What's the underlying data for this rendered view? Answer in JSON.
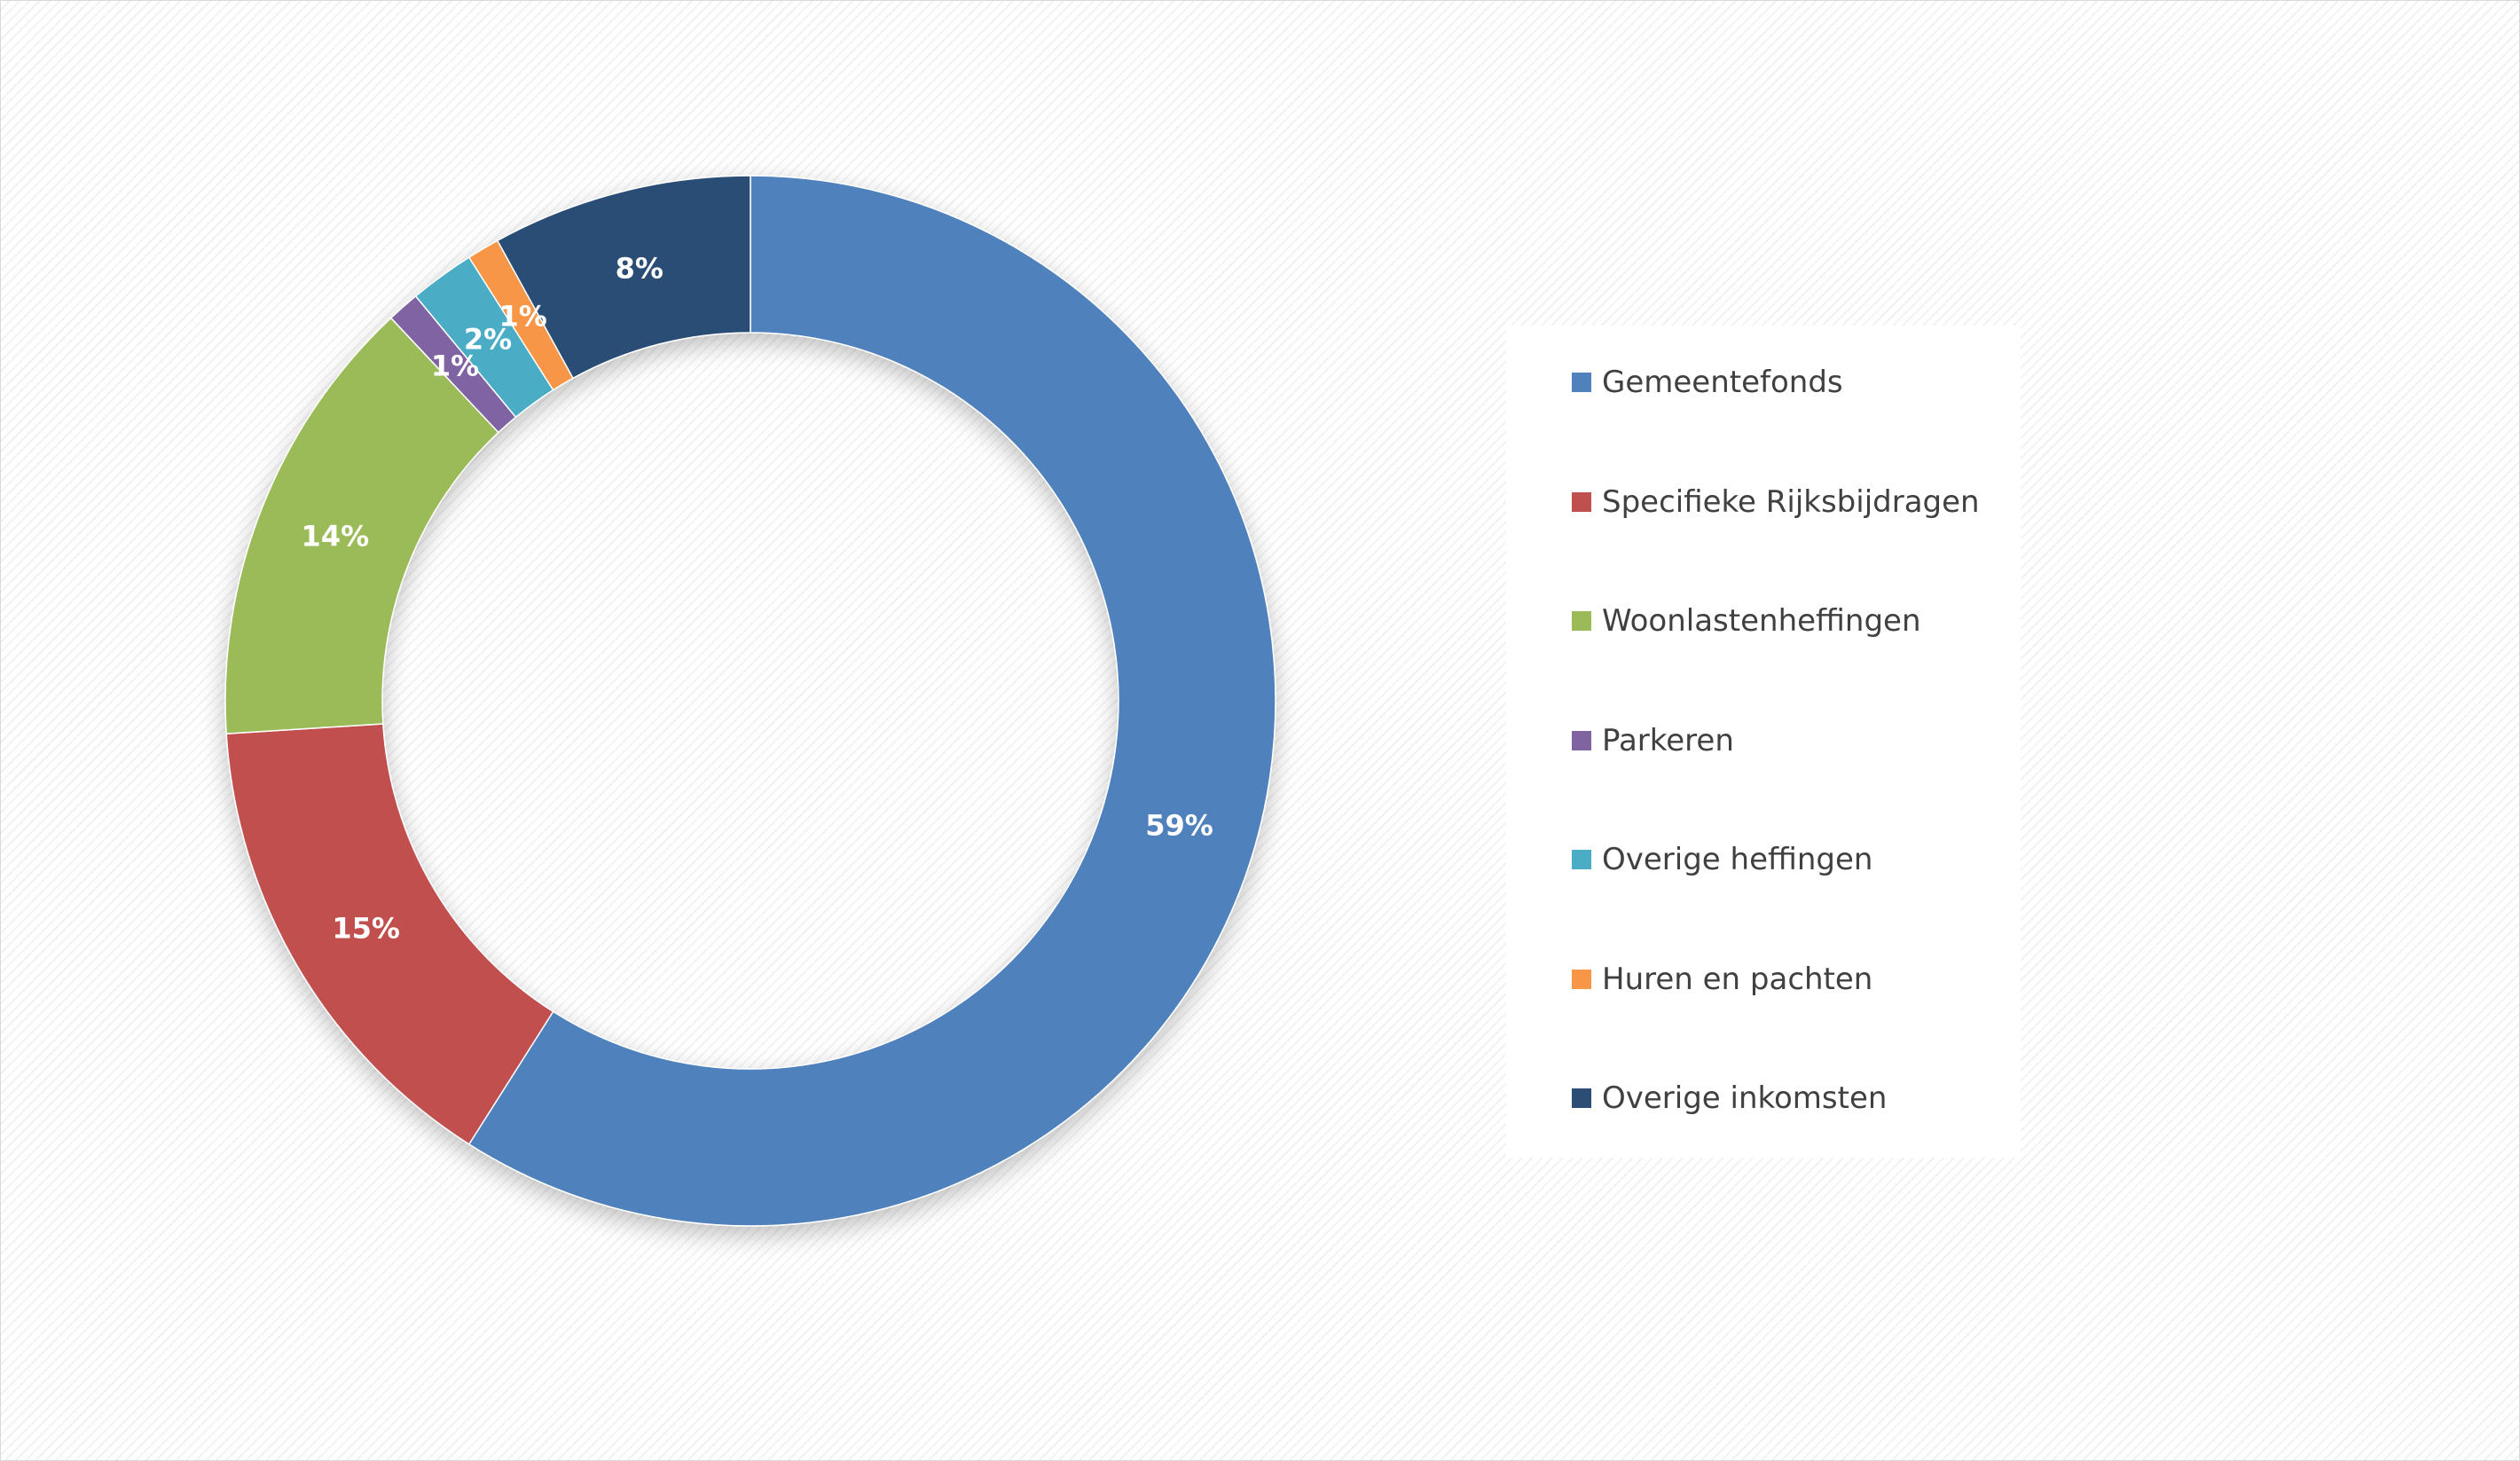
{
  "chart_data": {
    "type": "pie",
    "style": "donut",
    "title": "",
    "legend_position": "right",
    "slices": [
      {
        "name": "Gemeentefonds",
        "value": 59,
        "label": "59%",
        "color": "#4f81bd"
      },
      {
        "name": "Specifieke Rijksbijdragen",
        "value": 15,
        "label": "15%",
        "color": "#c0504d"
      },
      {
        "name": "Woonlastenheffingen",
        "value": 14,
        "label": "14%",
        "color": "#9bbb59"
      },
      {
        "name": "Parkeren",
        "value": 1,
        "label": "1%",
        "color": "#8064a2"
      },
      {
        "name": "Overige heffingen",
        "value": 2,
        "label": "2%",
        "color": "#4bacc6"
      },
      {
        "name": "Huren en pachten",
        "value": 1,
        "label": "1%",
        "color": "#f79646"
      },
      {
        "name": "Overige inkomsten",
        "value": 8,
        "label": "8%",
        "color": "#2c4d75"
      }
    ]
  }
}
